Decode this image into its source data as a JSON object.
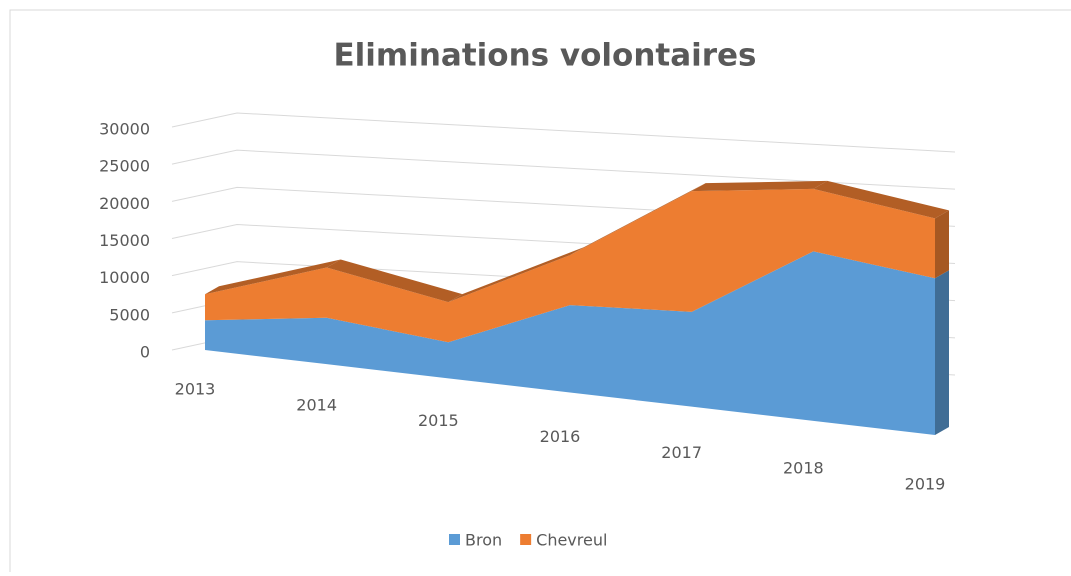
{
  "chart_data": {
    "type": "area3d",
    "title": "Eliminations volontaires",
    "categories": [
      "2013",
      "2014",
      "2015",
      "2016",
      "2017",
      "2018",
      "2019"
    ],
    "series": [
      {
        "name": "Bron",
        "color": "#5b9bd5",
        "values": [
          4000,
          6000,
          4500,
          10500,
          11000,
          19000,
          17000
        ]
      },
      {
        "name": "Chevreul",
        "color": "#ed7d31",
        "values": [
          3500,
          6500,
          5000,
          6000,
          14000,
          7000,
          6500
        ]
      }
    ],
    "ylim": [
      0,
      30000
    ],
    "yticks": [
      0,
      5000,
      10000,
      15000,
      20000,
      25000,
      30000
    ],
    "grid": true,
    "stacked": true,
    "legend": "bottom"
  }
}
